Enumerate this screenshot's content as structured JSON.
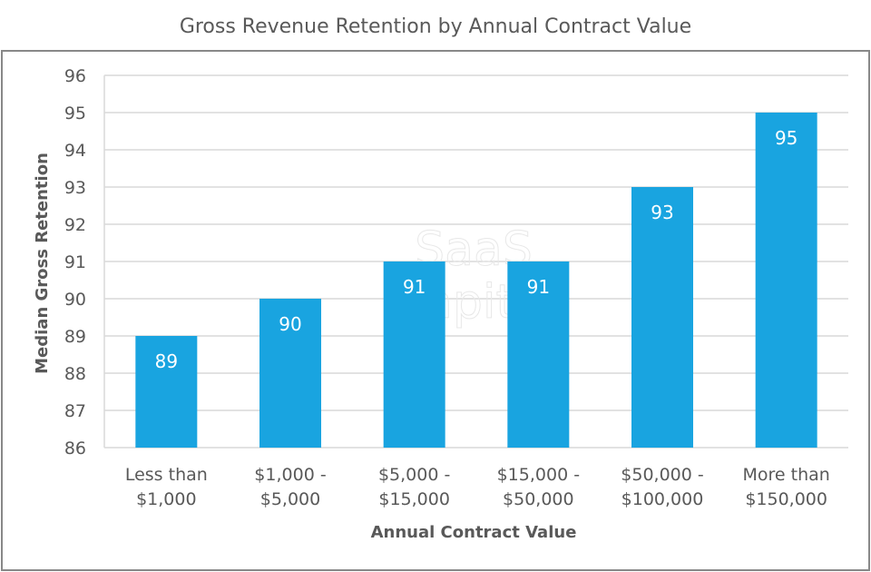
{
  "chart_data": {
    "type": "bar",
    "title": "Gross Revenue Retention by Annual Contract Value",
    "xlabel": "Annual Contract Value",
    "ylabel": "Median Gross Retention",
    "categories": [
      [
        "Less than",
        "$1,000"
      ],
      [
        "$1,000 -",
        "$5,000"
      ],
      [
        "$5,000 -",
        "$15,000"
      ],
      [
        "$15,000 -",
        "$50,000"
      ],
      [
        "$50,000 -",
        "$100,000"
      ],
      [
        "More than",
        "$150,000"
      ]
    ],
    "values": [
      89,
      90,
      91,
      91,
      93,
      95
    ],
    "ylim": [
      86,
      96
    ],
    "yticks": [
      86,
      87,
      88,
      89,
      90,
      91,
      92,
      93,
      94,
      95,
      96
    ],
    "grid": true,
    "legend": "none",
    "data_labels": true,
    "bar_color": "#19a4e0",
    "watermark": [
      "SaaS",
      "Capital"
    ]
  }
}
